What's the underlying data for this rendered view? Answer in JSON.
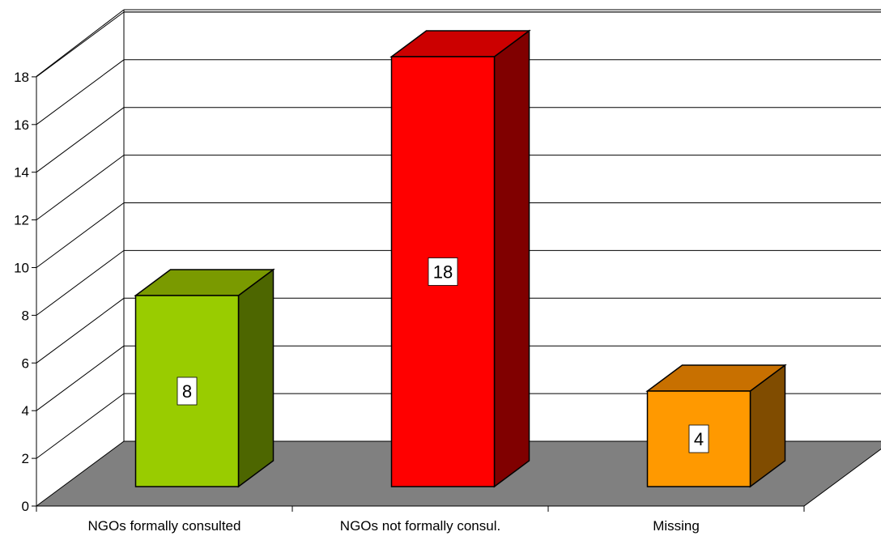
{
  "chart_data": {
    "type": "bar",
    "three_d": true,
    "categories": [
      "NGOs formally consulted",
      "NGOs not formally consul.",
      "Missing"
    ],
    "values": [
      8,
      18,
      4
    ],
    "data_labels": [
      "8",
      "18",
      "4"
    ],
    "ylim": [
      0,
      18
    ],
    "yticks": [
      0,
      2,
      4,
      6,
      8,
      10,
      12,
      14,
      16,
      18
    ],
    "ytick_labels": [
      "0",
      "2",
      "4",
      "6",
      "8",
      "10",
      "12",
      "14",
      "16",
      "18"
    ],
    "grid": true,
    "legend": "none",
    "floor_color": "#808080",
    "bar_colors": [
      {
        "front": "#99cc00",
        "top": "#7a9a00",
        "side": "#4d6600"
      },
      {
        "front": "#ff0000",
        "top": "#cc0000",
        "side": "#800000"
      },
      {
        "front": "#ff9900",
        "top": "#c87000",
        "side": "#804c00"
      }
    ]
  }
}
